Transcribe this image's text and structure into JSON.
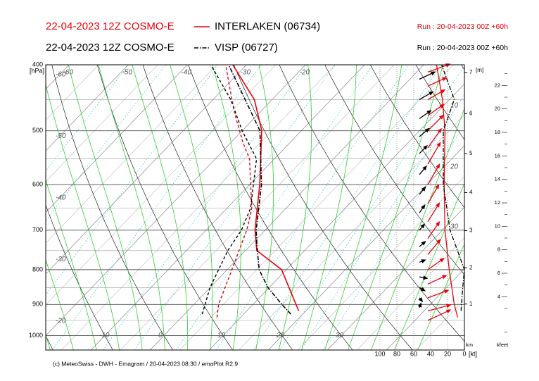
{
  "header": {
    "model_line_1": "22-04-2023 12Z COSMO-E",
    "model_line_2": "22-04-2023 12Z COSMO-E",
    "run_1": "Run : 20-04-2023 00Z +60h",
    "run_2": "Run : 20-04-2023 00Z +60h"
  },
  "footer": "(c) MeteoSwiss - DWH - Emagram / 20-04-2023 08:30 / emaPlot R2.9",
  "chart_data": {
    "type": "emagram",
    "pressure_label": "[hPa]",
    "log_y": true,
    "ylim": [
      1050,
      400
    ],
    "yticks": [
      400,
      500,
      600,
      700,
      800,
      900,
      1000
    ],
    "isotherm_labels_top": [
      -60,
      -50,
      -40,
      -30,
      -20
    ],
    "isotherm_labels_left": [
      -60,
      -50,
      -40,
      -30,
      -20
    ],
    "isotherm_labels_bottom": [
      -10,
      0,
      10,
      20,
      30
    ],
    "theta_w_labels": [
      10,
      20,
      30
    ],
    "height_axis": {
      "label_top": "[m]",
      "label_bottom": "km",
      "ticks": [
        1,
        2,
        3,
        4,
        5,
        6,
        7
      ]
    },
    "kfeet_axis": {
      "label": "kfeet",
      "lim": [
        0,
        24
      ],
      "ticks": [
        4,
        6,
        8,
        10,
        12,
        14,
        16,
        18,
        20,
        22
      ]
    },
    "wind_axis": {
      "label": "[kt]",
      "lim": [
        100,
        0
      ],
      "ticks": [
        100,
        80,
        60,
        40,
        20,
        0
      ]
    },
    "series": [
      {
        "name": "INTERLAKEN (06734)",
        "color": "#e8000b",
        "line_style": "solid",
        "temperature": {
          "pressure": [
            920,
            800,
            750,
            700,
            600,
            500,
            450,
            400
          ],
          "values": [
            18.8,
            9.2,
            1.9,
            -1.7,
            -8.3,
            -16.7,
            -23,
            -32.3
          ]
        },
        "dewpoint": {
          "pressure": [
            940,
            900,
            800,
            750,
            700,
            650,
            550,
            520,
            480,
            450,
            400
          ],
          "values": [
            6,
            4.2,
            0.8,
            -1.1,
            -3.1,
            -5.8,
            -14.2,
            -18,
            -23,
            -26.8,
            -33.5
          ]
        },
        "wind_speed": {
          "pressure": [
            940,
            900,
            800,
            700,
            600,
            500,
            450,
            400
          ],
          "values": [
            8,
            12,
            18,
            23,
            24,
            23,
            26,
            33
          ]
        },
        "wind": {
          "pressure": [
            410,
            430,
            450,
            475,
            500,
            530,
            560,
            600,
            640,
            680,
            720,
            760,
            800,
            840,
            880,
            920,
            950
          ],
          "speed": [
            30,
            26,
            25,
            25,
            28,
            30,
            32,
            30,
            28,
            28,
            26,
            25,
            25,
            26,
            28,
            30,
            32
          ],
          "direction": [
            250,
            245,
            240,
            235,
            225,
            215,
            210,
            210,
            210,
            212,
            215,
            220,
            235,
            245,
            250,
            255,
            245
          ]
        }
      },
      {
        "name": "VISP (06727)",
        "color": "#000000",
        "line_style": "dash-dot",
        "temperature": {
          "pressure": [
            930,
            900,
            850,
            800,
            750,
            700,
            600,
            500,
            400
          ],
          "values": [
            18,
            14.9,
            9.8,
            5.4,
            2,
            -1.5,
            -8,
            -17,
            -33
          ]
        },
        "dewpoint": {
          "pressure": [
            930,
            850,
            750,
            700,
            650,
            550,
            500,
            450,
            400
          ],
          "values": [
            3,
            0,
            -3,
            -4,
            -6,
            -13,
            -20,
            -27,
            -36
          ]
        },
        "wind_speed": {
          "pressure": [
            920,
            850,
            800,
            700,
            600,
            500,
            450,
            400
          ],
          "values": [
            4,
            2,
            0,
            17,
            25,
            25,
            12,
            27
          ]
        },
        "wind": {
          "pressure": [
            420,
            450,
            480,
            510,
            540,
            580,
            620,
            660,
            700,
            740,
            780,
            820,
            850,
            880,
            910
          ],
          "speed": [
            22,
            20,
            18,
            16,
            14,
            14,
            12,
            12,
            10,
            10,
            8,
            10,
            8,
            6,
            6
          ],
          "direction": [
            245,
            240,
            235,
            230,
            225,
            220,
            220,
            215,
            220,
            230,
            250,
            280,
            300,
            320,
            200
          ]
        }
      }
    ]
  }
}
